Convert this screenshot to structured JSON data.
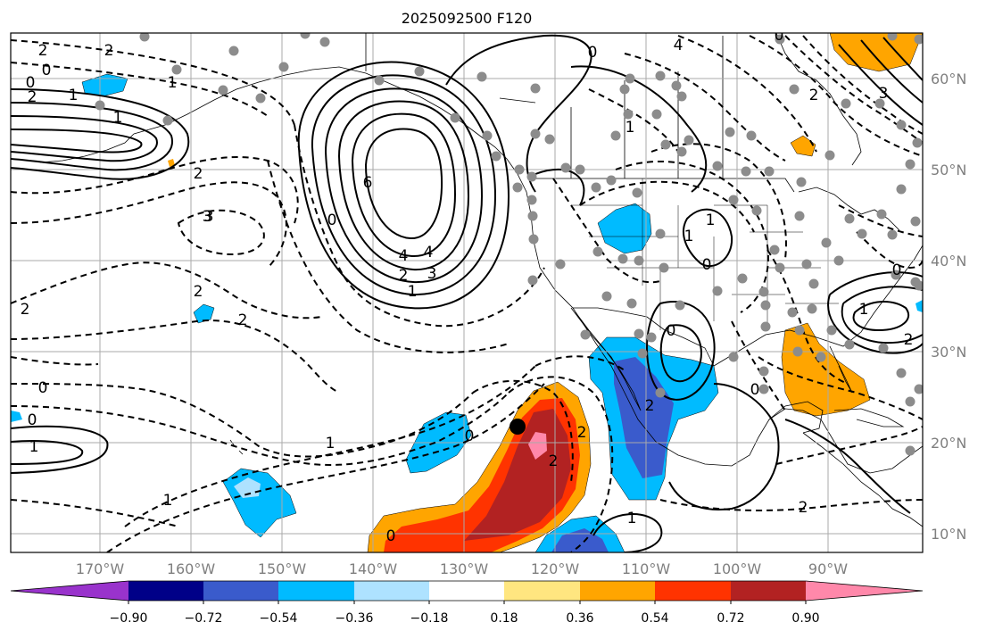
{
  "title": "2025092500 F120",
  "lon_labels": [
    "170°W",
    "160°W",
    "150°W",
    "140°W",
    "130°W",
    "120°W",
    "110°W",
    "100°W",
    "90°W"
  ],
  "lat_labels": [
    "60°N",
    "50°N",
    "40°N",
    "30°N",
    "20°N",
    "10°N"
  ],
  "colorbar": {
    "ticks": [
      "−0.90",
      "−0.72",
      "−0.54",
      "−0.36",
      "−0.18",
      "0.18",
      "0.36",
      "0.54",
      "0.72",
      "0.90"
    ],
    "colors": [
      "#9933cc",
      "#000088",
      "#3a5bcc",
      "#00bbff",
      "#aee2ff",
      "#ffffff",
      "#ffe680",
      "#ffa500",
      "#ff3300",
      "#b22222",
      "#ff88aa"
    ]
  },
  "contour_labels": [
    {
      "text": "2"
    },
    {
      "text": "2"
    },
    {
      "text": "0"
    },
    {
      "text": "0"
    },
    {
      "text": "1"
    },
    {
      "text": "1"
    },
    {
      "text": "2"
    },
    {
      "text": "1"
    },
    {
      "text": "2"
    },
    {
      "text": "3"
    },
    {
      "text": "6"
    },
    {
      "text": "0"
    },
    {
      "text": "4"
    },
    {
      "text": "3"
    },
    {
      "text": "2"
    },
    {
      "text": "1"
    },
    {
      "text": "2"
    },
    {
      "text": "2"
    },
    {
      "text": "2"
    },
    {
      "text": "0"
    },
    {
      "text": "0"
    },
    {
      "text": "1"
    },
    {
      "text": "1"
    },
    {
      "text": "0"
    },
    {
      "text": "1"
    },
    {
      "text": "0"
    },
    {
      "text": "2"
    },
    {
      "text": "2"
    },
    {
      "text": "1"
    },
    {
      "text": "2"
    },
    {
      "text": "1"
    },
    {
      "text": "1"
    },
    {
      "text": "0"
    },
    {
      "text": "0"
    },
    {
      "text": "3"
    },
    {
      "text": "4"
    },
    {
      "text": "0"
    },
    {
      "text": "4"
    },
    {
      "text": "2"
    },
    {
      "text": "1"
    },
    {
      "text": "1"
    },
    {
      "text": "0"
    },
    {
      "text": "2"
    },
    {
      "text": "0"
    },
    {
      "text": "3"
    },
    {
      "text": "2"
    },
    {
      "text": "0"
    }
  ],
  "colors": {
    "grid": "#aaaaaa",
    "axis_label": "#7f7f7f",
    "station": "#8c8c8c"
  }
}
